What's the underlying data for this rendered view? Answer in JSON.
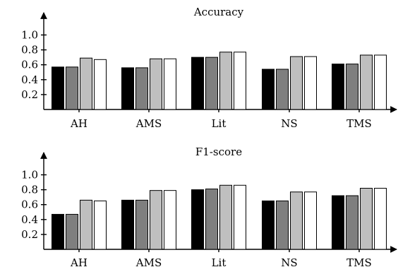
{
  "charts": [
    {
      "type": "bar",
      "title": "Accuracy",
      "categories": [
        "AH",
        "AMS",
        "Lit",
        "NS",
        "TMS"
      ],
      "yticks": [
        "0.2",
        "0.4",
        "0.6",
        "0.8",
        "1.0"
      ],
      "ylim": [
        0,
        1.1
      ],
      "series": [
        {
          "color": "#000000",
          "values": [
            0.57,
            0.56,
            0.7,
            0.54,
            0.61
          ]
        },
        {
          "color": "#7f7f7f",
          "values": [
            0.57,
            0.56,
            0.7,
            0.54,
            0.61
          ]
        },
        {
          "color": "#bfbfbf",
          "values": [
            0.69,
            0.68,
            0.77,
            0.71,
            0.73
          ]
        },
        {
          "color": "#ffffff",
          "values": [
            0.67,
            0.68,
            0.77,
            0.71,
            0.73
          ]
        }
      ]
    },
    {
      "type": "bar",
      "title": "F1-score",
      "categories": [
        "AH",
        "AMS",
        "Lit",
        "NS",
        "TMS"
      ],
      "yticks": [
        "0.2",
        "0.4",
        "0.6",
        "0.8",
        "1.0"
      ],
      "ylim": [
        0,
        1.1
      ],
      "series": [
        {
          "color": "#000000",
          "values": [
            0.47,
            0.66,
            0.8,
            0.65,
            0.72
          ]
        },
        {
          "color": "#7f7f7f",
          "values": [
            0.47,
            0.66,
            0.81,
            0.65,
            0.72
          ]
        },
        {
          "color": "#bfbfbf",
          "values": [
            0.66,
            0.79,
            0.86,
            0.77,
            0.82
          ]
        },
        {
          "color": "#ffffff",
          "values": [
            0.65,
            0.79,
            0.86,
            0.77,
            0.82
          ]
        }
      ]
    }
  ]
}
